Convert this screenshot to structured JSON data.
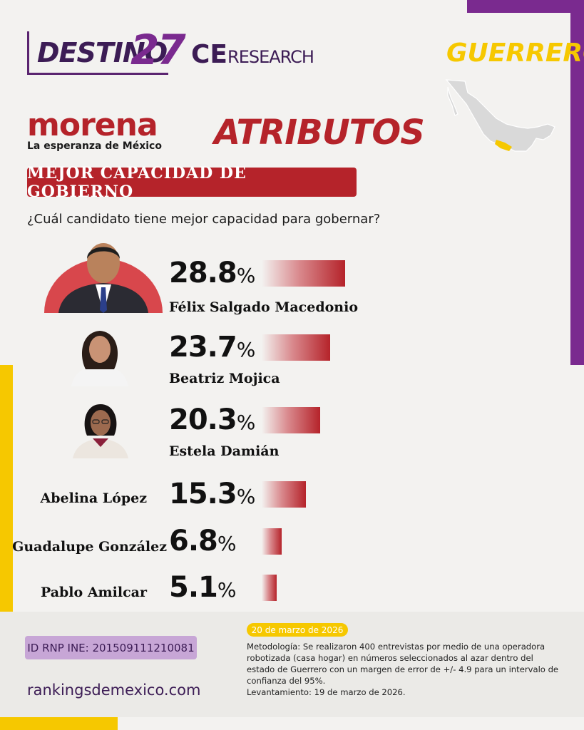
{
  "header": {
    "destino_word": "DESTINO",
    "destino_num": "27",
    "ce_prefix": "CE",
    "ce_suffix": "RESEARCH",
    "state": "GUERRERO"
  },
  "party": {
    "name": "morena",
    "slogan": "La esperanza de México"
  },
  "section_title": "ATRIBUTOS",
  "banner": "MEJOR CAPACIDAD DE GOBIERNO",
  "question": "¿Cuál candidato tiene mejor capacidad para gobernar?",
  "percent_symbol": "%",
  "colors": {
    "purple": "#7a2a8f",
    "yellow": "#f6c800",
    "morena_red": "#b5232a"
  },
  "icons": [
    "mexico-map",
    "candidate-photo"
  ],
  "chart_data": {
    "type": "bar",
    "categories": [
      "Félix Salgado Macedonio",
      "Beatriz Mojica",
      "Estela Damián",
      "Abelina López",
      "Guadalupe González",
      "Pablo Amilcar"
    ],
    "values": [
      28.8,
      23.7,
      20.3,
      15.3,
      6.8,
      5.1
    ],
    "value_labels": [
      "28.8",
      "23.7",
      "20.3",
      "15.3",
      "6.8",
      "5.1"
    ],
    "orientation": "horizontal",
    "title": "",
    "xlabel": "",
    "ylabel": "",
    "grid": false
  },
  "footer": {
    "rnp": "ID RNP INE: 201509111210081",
    "website": "rankingsdemexico.com",
    "date": "20 de marzo de 2026",
    "methodology": "Metodología: Se realizaron 400 entrevistas por medio de una operadora robotizada (casa hogar) en números seleccionados al azar dentro del estado de Guerrero con un margen de error de +/- 4.9 para un intervalo de confianza del 95%.",
    "fieldwork": "Levantamiento: 19 de marzo de 2026."
  }
}
